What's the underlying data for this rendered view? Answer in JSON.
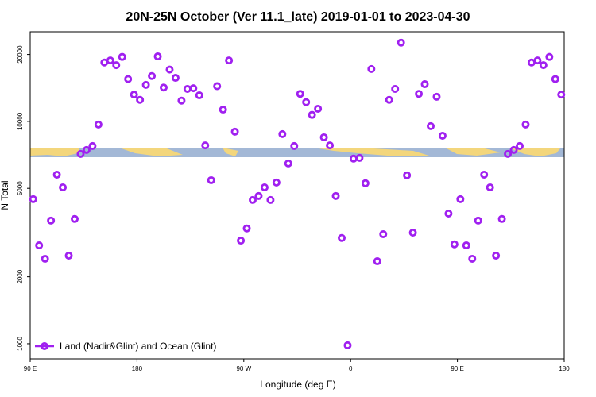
{
  "chart_data": {
    "type": "scatter",
    "title": "20N-25N October (Ver 11.1_late)   2019-01-01 to 2023-04-30",
    "xlabel": "Longitude (deg E)",
    "ylabel": "N Total",
    "log_y": true,
    "legend": "lower left",
    "xlim": [
      90,
      540
    ],
    "xticks": [
      {
        "value": 90,
        "label": "90 E"
      },
      180,
      {
        "value": 270,
        "label": "90 W"
      },
      {
        "value": 360,
        "label": "0"
      },
      {
        "value": 450,
        "label": "90 E"
      },
      {
        "value": 540,
        "label": "180"
      }
    ],
    "ylim": [
      855,
      25300
    ],
    "yticks": [
      1000,
      2000,
      5000,
      10000,
      20000
    ],
    "series": [
      {
        "name": "Land (Nadir&Glint) and Ocean (Glint)",
        "color": "#a020f0",
        "x": [
          92.5,
          97.5,
          102.5,
          107.5,
          112.5,
          117.5,
          122.5,
          127.5,
          132.5,
          137.5,
          142.5,
          147.5,
          152.5,
          157.5,
          162.5,
          167.5,
          172.5,
          177.5,
          182.5,
          187.5,
          192.5,
          197.5,
          202.5,
          207.5,
          212.5,
          217.5,
          222.5,
          227.5,
          232.5,
          237.5,
          242.5,
          247.5,
          252.5,
          257.5,
          262.5,
          267.5,
          272.5,
          277.5,
          282.5,
          287.5,
          292.5,
          297.5,
          302.5,
          307.5,
          312.5,
          317.5,
          322.5,
          327.5,
          332.5,
          337.5,
          342.5,
          347.5,
          352.5,
          357.5,
          362.5,
          367.5,
          372.5,
          377.5,
          382.5,
          387.5,
          392.5,
          397.5,
          402.5,
          407.5,
          412.5,
          417.5,
          422.5,
          427.5,
          432.5,
          437.5,
          442.5,
          447.5,
          452.5,
          457.5,
          462.5,
          467.5,
          472.5,
          477.5,
          482.5,
          487.5,
          492.5,
          497.5,
          502.5,
          507.5,
          512.5,
          517.5,
          522.5,
          527.5,
          532.5,
          537.5
        ],
        "values": [
          4470,
          2770,
          2410,
          3580,
          5760,
          5050,
          2490,
          3640,
          7140,
          7440,
          7750,
          9680,
          18400,
          18800,
          17900,
          19500,
          15500,
          13200,
          12500,
          14600,
          16000,
          19600,
          14200,
          17100,
          15700,
          12400,
          14000,
          14100,
          13100,
          7800,
          5440,
          14400,
          11300,
          18800,
          8990,
          2910,
          3300,
          4430,
          4620,
          5050,
          4430,
          5310,
          8770,
          6470,
          7750,
          13300,
          12200,
          10700,
          11400,
          8480,
          7800,
          4620,
          2990,
          984,
          6800,
          6850,
          5270,
          17200,
          2350,
          3110,
          12500,
          14000,
          22600,
          5720,
          3160,
          13300,
          14700,
          9520,
          12900,
          8620,
          3850,
          2800,
          4470,
          2770,
          2410,
          3580,
          5760,
          5050,
          2490,
          3640,
          7140,
          7440,
          7750,
          9680,
          18400,
          18800,
          17900,
          19500,
          15500,
          13200
        ]
      }
    ]
  }
}
